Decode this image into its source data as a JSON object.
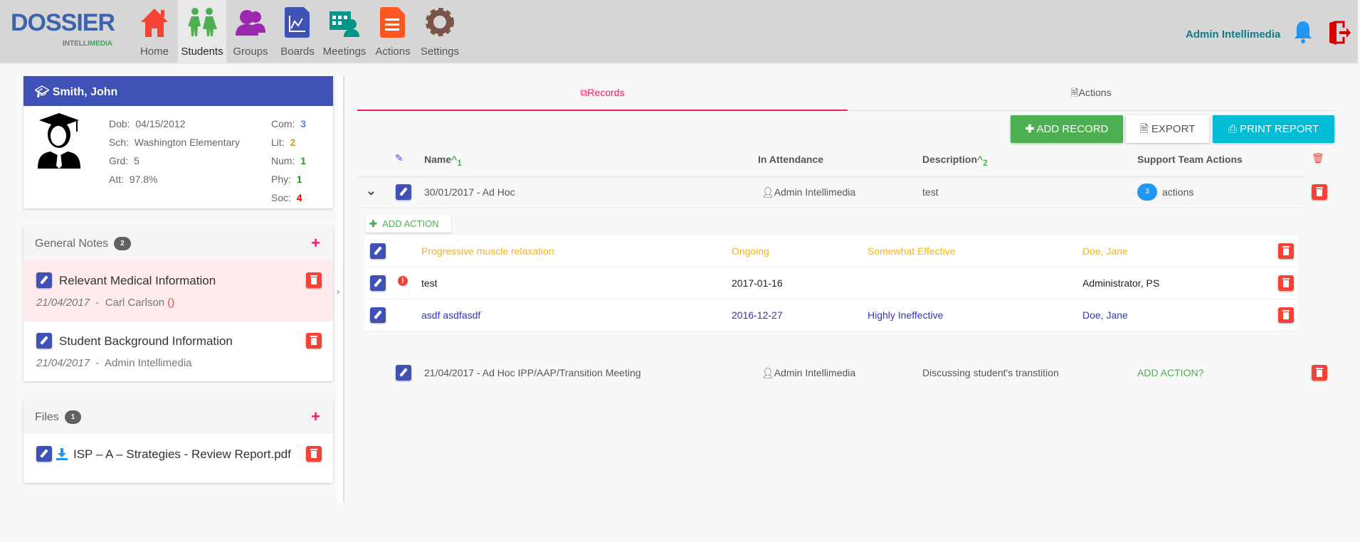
{
  "app": {
    "logo": "DOSSIER",
    "logo_sub_a": "INTELLI",
    "logo_sub_b": "MEDIA"
  },
  "nav": [
    {
      "label": "Home",
      "icon": "home-icon",
      "color": "#f44336"
    },
    {
      "label": "Students",
      "icon": "students-icon",
      "color": "#4caf50",
      "active": true
    },
    {
      "label": "Groups",
      "icon": "groups-icon",
      "color": "#9c27b0"
    },
    {
      "label": "Boards",
      "icon": "boards-icon",
      "color": "#3f51b5"
    },
    {
      "label": "Meetings",
      "icon": "meetings-icon",
      "color": "#009688"
    },
    {
      "label": "Actions",
      "icon": "actions-icon",
      "color": "#ff5722"
    },
    {
      "label": "Settings",
      "icon": "settings-icon",
      "color": "#795548"
    }
  ],
  "user": {
    "name": "Admin Intellimedia"
  },
  "student": {
    "name": "Smith,  John",
    "info": [
      {
        "k": "Dob:",
        "v": "04/15/2012"
      },
      {
        "k": "Sch:",
        "v": "Washington Elementary"
      },
      {
        "k": "Grd:",
        "v": "5"
      },
      {
        "k": "Att:",
        "v": "97.8%"
      }
    ],
    "scores": [
      {
        "k": "Com:",
        "v": "3",
        "color": "#5c7cfa"
      },
      {
        "k": "Lit:",
        "v": "2",
        "color": "#d4a017"
      },
      {
        "k": "Num:",
        "v": "1",
        "color": "#1a9a1a"
      },
      {
        "k": "Phy:",
        "v": "1",
        "color": "#1a9a1a"
      },
      {
        "k": "Soc:",
        "v": "4",
        "color": "#e60000"
      }
    ]
  },
  "notes": {
    "title": "General Notes",
    "count": "2",
    "items": [
      {
        "title": "Relevant Medical Information",
        "date": "21/04/2017",
        "sep": "-",
        "author": "Carl Carlson",
        "extra": "()"
      },
      {
        "title": "Student Background Information",
        "date": "21/04/2017",
        "sep": "-",
        "author": "Admin Intellimedia"
      }
    ]
  },
  "files": {
    "title": "Files",
    "count": "1",
    "items": [
      {
        "name": "ISP – A – Strategies - Review Report.pdf"
      }
    ]
  },
  "tabs": [
    {
      "label": "Records",
      "active": true
    },
    {
      "label": "Actions"
    }
  ],
  "toolbar": {
    "add": "ADD RECORD",
    "export": "EXPORT",
    "print": "PRINT REPORT"
  },
  "table": {
    "headers": {
      "name": "Name",
      "name_sort": "1",
      "attendance": "In Attendance",
      "description": "Description",
      "desc_sort": "2",
      "support": "Support Team Actions"
    },
    "records": [
      {
        "name": "30/01/2017 - Ad Hoc",
        "attendance": "Admin Intellimedia",
        "description": "test",
        "actions_count": "3",
        "actions_label": "actions",
        "add_action": "ADD ACTION",
        "sub": [
          {
            "name": "Progressive muscle relaxation",
            "date": "Ongoing",
            "effect": "Somewhat Effective",
            "person": "Doe, Jane",
            "color": "#ffb300"
          },
          {
            "name": "test",
            "date": "2017-01-16",
            "effect": "",
            "person": "Administrator, PS",
            "color": "#222222",
            "alert": true
          },
          {
            "name": "asdf asdfasdf",
            "date": "2016-12-27",
            "effect": "Highly Ineffective",
            "person": "Doe, Jane",
            "color": "#3333bb"
          }
        ]
      },
      {
        "name": "21/04/2017 - Ad Hoc IPP/AAP/Transition Meeting",
        "attendance": "Admin Intellimedia",
        "description": "Discussing student's transtition",
        "add_action_q": "ADD ACTION?"
      }
    ]
  }
}
